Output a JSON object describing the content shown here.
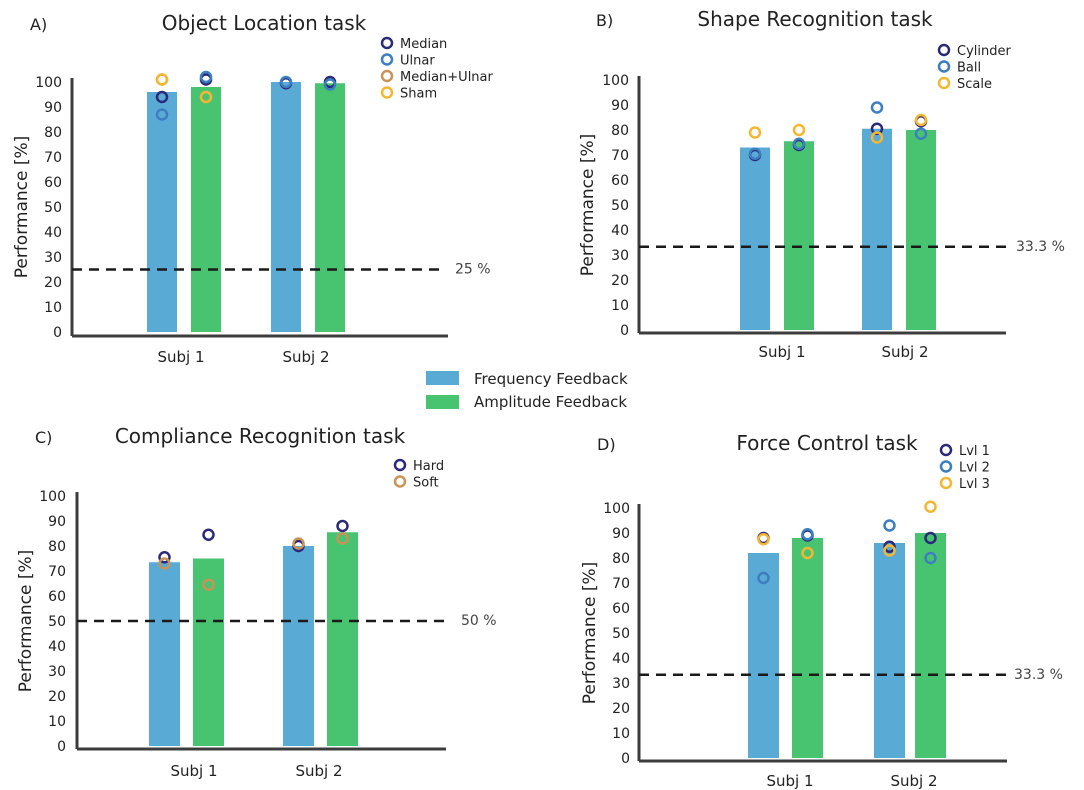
{
  "colors": {
    "frequency": "#5aaad6",
    "amplitude": "#48c470",
    "axis": "#3c3c3c",
    "text": "#222222",
    "chance_text": "#444444"
  },
  "legend": {
    "frequency_label": "Frequency Feedback",
    "amplitude_label": "Amplitude Feedback"
  },
  "chart_data": [
    {
      "type": "bar",
      "panel_label": "A)",
      "title": "Object Location task",
      "ylabel": "Performance [%]",
      "ylim": [
        0,
        100
      ],
      "yticks": [
        0,
        10,
        20,
        30,
        40,
        50,
        60,
        70,
        80,
        90,
        100
      ],
      "categories": [
        "Subj 1",
        "Subj 2"
      ],
      "series": [
        {
          "name": "Frequency Feedback",
          "color": "#5aaad6",
          "values": [
            96,
            100
          ]
        },
        {
          "name": "Amplitude Feedback",
          "color": "#48c470",
          "values": [
            98,
            99.5
          ]
        }
      ],
      "chance_level": {
        "value": 25,
        "label": "25 %"
      },
      "marker_legend": [
        {
          "name": "Median",
          "color": "#2b2a7a"
        },
        {
          "name": "Ulnar",
          "color": "#3c7ec0"
        },
        {
          "name": "Median+Ulnar",
          "color": "#c99358"
        },
        {
          "name": "Sham",
          "color": "#f4b733"
        }
      ],
      "markers": [
        {
          "category": 0,
          "series": 0,
          "name": "Median",
          "value": 94
        },
        {
          "category": 0,
          "series": 0,
          "name": "Ulnar",
          "value": 87
        },
        {
          "category": 0,
          "series": 0,
          "name": "Median+Ulnar",
          "value": 101
        },
        {
          "category": 0,
          "series": 0,
          "name": "Sham",
          "value": 101
        },
        {
          "category": 0,
          "series": 1,
          "name": "Median",
          "value": 101
        },
        {
          "category": 0,
          "series": 1,
          "name": "Ulnar",
          "value": 102
        },
        {
          "category": 0,
          "series": 1,
          "name": "Median+Ulnar",
          "value": 94
        },
        {
          "category": 0,
          "series": 1,
          "name": "Sham",
          "value": 94
        },
        {
          "category": 1,
          "series": 0,
          "name": "Median",
          "value": 99.5
        },
        {
          "category": 1,
          "series": 0,
          "name": "Ulnar",
          "value": 100
        },
        {
          "category": 1,
          "series": 1,
          "name": "Median",
          "value": 100
        },
        {
          "category": 1,
          "series": 1,
          "name": "Ulnar",
          "value": 99
        }
      ]
    },
    {
      "type": "bar",
      "panel_label": "B)",
      "title": "Shape Recognition task",
      "ylabel": "Performance [%]",
      "ylim": [
        0,
        100
      ],
      "yticks": [
        0,
        10,
        20,
        30,
        40,
        50,
        60,
        70,
        80,
        90,
        100
      ],
      "categories": [
        "Subj 1",
        "Subj 2"
      ],
      "series": [
        {
          "name": "Frequency Feedback",
          "color": "#5aaad6",
          "values": [
            73,
            80.5
          ]
        },
        {
          "name": "Amplitude Feedback",
          "color": "#48c470",
          "values": [
            75.5,
            80
          ]
        }
      ],
      "chance_level": {
        "value": 33.3,
        "label": "33.3 %"
      },
      "marker_legend": [
        {
          "name": "Cylinder",
          "color": "#2b2a7a"
        },
        {
          "name": "Ball",
          "color": "#3c7ec0"
        },
        {
          "name": "Scale",
          "color": "#f4b733"
        }
      ],
      "markers": [
        {
          "category": 0,
          "series": 0,
          "name": "Cylinder",
          "value": 70
        },
        {
          "category": 0,
          "series": 0,
          "name": "Ball",
          "value": 70.5
        },
        {
          "category": 0,
          "series": 0,
          "name": "Scale",
          "value": 79
        },
        {
          "category": 0,
          "series": 1,
          "name": "Cylinder",
          "value": 74
        },
        {
          "category": 0,
          "series": 1,
          "name": "Ball",
          "value": 74.5
        },
        {
          "category": 0,
          "series": 1,
          "name": "Scale",
          "value": 80
        },
        {
          "category": 1,
          "series": 0,
          "name": "Cylinder",
          "value": 80.5
        },
        {
          "category": 1,
          "series": 0,
          "name": "Ball",
          "value": 89
        },
        {
          "category": 1,
          "series": 0,
          "name": "Scale",
          "value": 77
        },
        {
          "category": 1,
          "series": 1,
          "name": "Cylinder",
          "value": 83.5
        },
        {
          "category": 1,
          "series": 1,
          "name": "Ball",
          "value": 78.5
        },
        {
          "category": 1,
          "series": 1,
          "name": "Scale",
          "value": 84
        }
      ]
    },
    {
      "type": "bar",
      "panel_label": "C)",
      "title": "Compliance Recognition task",
      "ylabel": "Performance [%]",
      "ylim": [
        0,
        100
      ],
      "yticks": [
        0,
        10,
        20,
        30,
        40,
        50,
        60,
        70,
        80,
        90,
        100
      ],
      "categories": [
        "Subj 1",
        "Subj 2"
      ],
      "series": [
        {
          "name": "Frequency Feedback",
          "color": "#5aaad6",
          "values": [
            73.5,
            80
          ]
        },
        {
          "name": "Amplitude Feedback",
          "color": "#48c470",
          "values": [
            75,
            85.5
          ]
        }
      ],
      "chance_level": {
        "value": 50,
        "label": "50 %"
      },
      "marker_legend": [
        {
          "name": "Hard",
          "color": "#2b2a7a"
        },
        {
          "name": "Soft",
          "color": "#c99358"
        }
      ],
      "markers": [
        {
          "category": 0,
          "series": 0,
          "name": "Hard",
          "value": 75.5
        },
        {
          "category": 0,
          "series": 0,
          "name": "Soft",
          "value": 73
        },
        {
          "category": 0,
          "series": 1,
          "name": "Hard",
          "value": 84.5
        },
        {
          "category": 0,
          "series": 1,
          "name": "Soft",
          "value": 64.5
        },
        {
          "category": 1,
          "series": 0,
          "name": "Hard",
          "value": 80
        },
        {
          "category": 1,
          "series": 0,
          "name": "Soft",
          "value": 81
        },
        {
          "category": 1,
          "series": 1,
          "name": "Hard",
          "value": 88
        },
        {
          "category": 1,
          "series": 1,
          "name": "Soft",
          "value": 83
        }
      ]
    },
    {
      "type": "bar",
      "panel_label": "D)",
      "title": "Force Control task",
      "ylabel": "Performance [%]",
      "ylim": [
        0,
        100
      ],
      "yticks": [
        0,
        10,
        20,
        30,
        40,
        50,
        60,
        70,
        80,
        90,
        100
      ],
      "categories": [
        "Subj 1",
        "Subj 2"
      ],
      "series": [
        {
          "name": "Frequency Feedback",
          "color": "#5aaad6",
          "values": [
            82,
            86
          ]
        },
        {
          "name": "Amplitude Feedback",
          "color": "#48c470",
          "values": [
            88,
            90
          ]
        }
      ],
      "chance_level": {
        "value": 33.3,
        "label": "33.3 %"
      },
      "marker_legend": [
        {
          "name": "Lvl 1",
          "color": "#2b2a7a"
        },
        {
          "name": "Lvl 2",
          "color": "#3c7ec0"
        },
        {
          "name": "Lvl 3",
          "color": "#f4b733"
        }
      ],
      "markers": [
        {
          "category": 0,
          "series": 0,
          "name": "Lvl 1",
          "value": 88
        },
        {
          "category": 0,
          "series": 0,
          "name": "Lvl 2",
          "value": 72
        },
        {
          "category": 0,
          "series": 0,
          "name": "Lvl 3",
          "value": 87.5
        },
        {
          "category": 0,
          "series": 1,
          "name": "Lvl 1",
          "value": 89
        },
        {
          "category": 0,
          "series": 1,
          "name": "Lvl 2",
          "value": 89.5
        },
        {
          "category": 0,
          "series": 1,
          "name": "Lvl 3",
          "value": 82
        },
        {
          "category": 1,
          "series": 0,
          "name": "Lvl 1",
          "value": 84.5
        },
        {
          "category": 1,
          "series": 0,
          "name": "Lvl 2",
          "value": 93
        },
        {
          "category": 1,
          "series": 0,
          "name": "Lvl 3",
          "value": 83
        },
        {
          "category": 1,
          "series": 1,
          "name": "Lvl 1",
          "value": 88
        },
        {
          "category": 1,
          "series": 1,
          "name": "Lvl 2",
          "value": 80
        },
        {
          "category": 1,
          "series": 1,
          "name": "Lvl 3",
          "value": 100.5
        }
      ]
    }
  ]
}
